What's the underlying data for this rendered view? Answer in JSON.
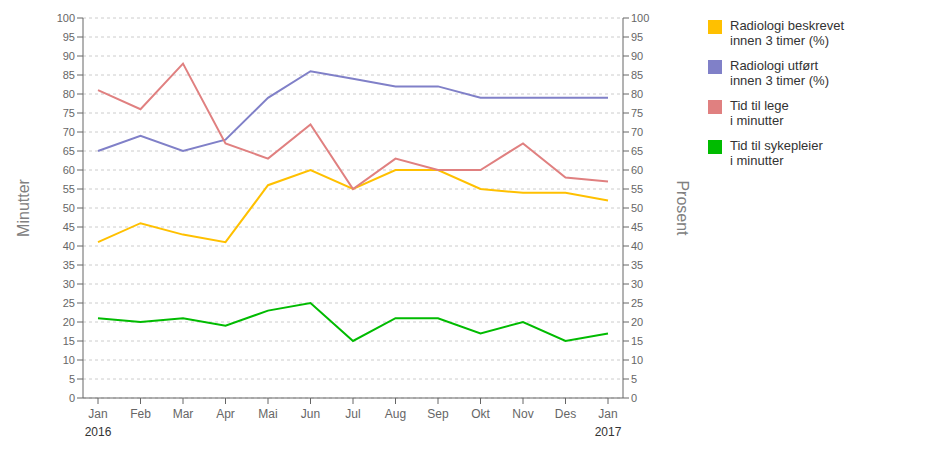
{
  "chart_data": {
    "type": "line",
    "categories": [
      "Jan",
      "Feb",
      "Mar",
      "Apr",
      "Mai",
      "Jun",
      "Jul",
      "Aug",
      "Sep",
      "Okt",
      "Nov",
      "Des",
      "Jan"
    ],
    "series": [
      {
        "name": "Radiologi utført\ninnen 3 timer (%)",
        "color": "#8080c8",
        "values": [
          65,
          69,
          65,
          68,
          79,
          86,
          84,
          82,
          82,
          79,
          79,
          79,
          79
        ]
      },
      {
        "name": "Radiologi beskrevet\ninnen 3 timer (%)",
        "color": "#ffc000",
        "values": [
          41,
          46,
          43,
          41,
          56,
          60,
          55,
          60,
          60,
          55,
          54,
          54,
          52
        ]
      },
      {
        "name": "Tid til lege\ni minutter",
        "color": "#e08080",
        "values": [
          81,
          76,
          88,
          67,
          63,
          72,
          55,
          63,
          60,
          60,
          67,
          58,
          57
        ]
      },
      {
        "name": "Tid til sykepleier\ni minutter",
        "color": "#00bb00",
        "values": [
          21,
          20,
          21,
          19,
          23,
          25,
          15,
          21,
          21,
          17,
          20,
          15,
          17
        ]
      }
    ],
    "ylabel": "Minutter",
    "y2label": "Prosent",
    "ylim": [
      0,
      100
    ],
    "yticks": [
      0,
      5,
      10,
      15,
      20,
      25,
      30,
      35,
      40,
      45,
      50,
      55,
      60,
      65,
      70,
      75,
      80,
      85,
      90,
      95,
      100
    ],
    "y2lim": [
      0,
      100
    ],
    "y2ticks": [
      0,
      5,
      10,
      15,
      20,
      25,
      30,
      35,
      40,
      45,
      50,
      55,
      60,
      65,
      70,
      75,
      80,
      85,
      90,
      95,
      100
    ],
    "annotations": [
      {
        "text": "2016",
        "x": 0
      },
      {
        "text": "2017",
        "x": 12
      }
    ],
    "grid": true,
    "legend": "right"
  }
}
